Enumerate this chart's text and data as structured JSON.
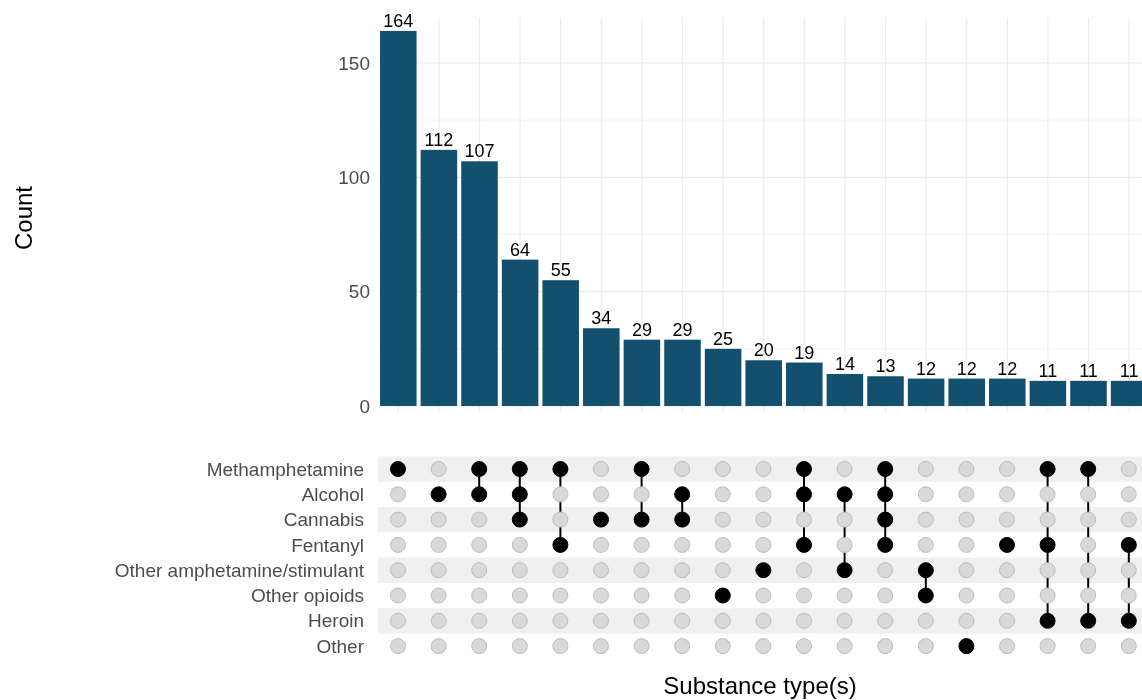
{
  "chart_data": [
    {
      "type": "bar",
      "ylabel": "Count",
      "categories": [
        null,
        null,
        null,
        null,
        null,
        null,
        null,
        null,
        null,
        null,
        null,
        null,
        null,
        null,
        null,
        null,
        null,
        null,
        null
      ],
      "values": [
        164,
        112,
        107,
        64,
        55,
        34,
        29,
        29,
        25,
        20,
        19,
        14,
        13,
        12,
        12,
        12,
        11,
        11,
        11
      ],
      "color": "#134f6e",
      "ylim": [
        0,
        170
      ],
      "yticks": [
        0,
        {
          "value": 25,
          "label": null
        },
        50,
        {
          "value": 75,
          "label": null
        },
        100,
        {
          "value": 125,
          "label": null
        },
        150
      ],
      "grid": true,
      "data_labels": true
    },
    {
      "type": "other",
      "xlabel": "Substance type(s)",
      "categories": [
        null,
        null,
        null,
        null,
        null,
        null,
        null,
        null,
        null,
        null,
        null,
        null,
        null,
        null,
        null,
        null,
        null,
        null,
        null
      ],
      "y_categories": [
        "Methamphetamine",
        "Alcohol",
        "Cannabis",
        "Fentanyl",
        "Other amphetamine/stimulant",
        "Other opioids",
        "Heroin",
        "Other"
      ],
      "cells": [
        [
          true,
          false,
          true,
          true,
          true,
          false,
          true,
          false,
          false,
          false,
          true,
          false,
          true,
          false,
          false,
          false,
          true,
          true,
          false
        ],
        [
          false,
          true,
          true,
          true,
          false,
          false,
          false,
          true,
          false,
          false,
          true,
          true,
          true,
          false,
          false,
          false,
          false,
          false,
          false
        ],
        [
          false,
          false,
          false,
          true,
          false,
          true,
          true,
          true,
          false,
          false,
          false,
          false,
          true,
          false,
          false,
          false,
          false,
          false,
          false
        ],
        [
          false,
          false,
          false,
          false,
          true,
          false,
          false,
          false,
          false,
          false,
          true,
          false,
          true,
          false,
          false,
          true,
          true,
          false,
          true
        ],
        [
          false,
          false,
          false,
          false,
          false,
          false,
          false,
          false,
          false,
          true,
          false,
          true,
          false,
          true,
          false,
          false,
          false,
          false,
          false
        ],
        [
          false,
          false,
          false,
          false,
          false,
          false,
          false,
          false,
          true,
          false,
          false,
          false,
          false,
          true,
          false,
          false,
          false,
          false,
          false
        ],
        [
          false,
          false,
          false,
          false,
          false,
          false,
          false,
          false,
          false,
          false,
          false,
          false,
          false,
          false,
          false,
          false,
          true,
          true,
          true
        ],
        [
          false,
          false,
          false,
          false,
          false,
          false,
          false,
          false,
          false,
          false,
          false,
          false,
          false,
          false,
          true,
          false,
          false,
          false,
          false
        ]
      ]
    }
  ]
}
